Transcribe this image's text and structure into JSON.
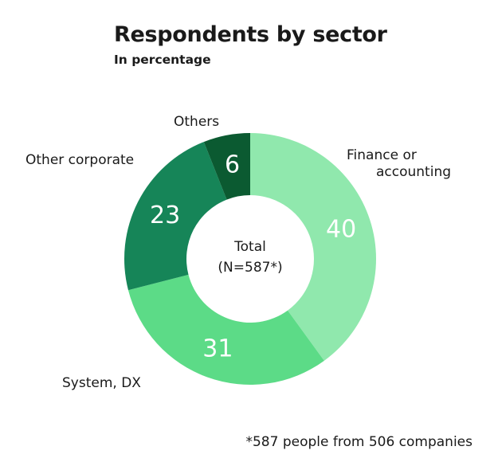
{
  "title": "Respondents by sector",
  "subtitle": "In percentage",
  "footnote": "*587 people from 506 companies",
  "chart_data": {
    "type": "pie",
    "donut": true,
    "center_label": [
      "Total",
      "(N=587*)"
    ],
    "categories": [
      "Finance or accounting",
      "System, DX",
      "Other corporate",
      "Others"
    ],
    "category_lines": [
      [
        "Finance or",
        "accounting"
      ],
      [
        "System, DX"
      ],
      [
        "Other corporate"
      ],
      [
        "Others"
      ]
    ],
    "values": [
      40,
      31,
      23,
      6
    ],
    "unit": "%",
    "colors": [
      "#90e8ad",
      "#5cdb87",
      "#168558",
      "#0b5a31"
    ]
  }
}
